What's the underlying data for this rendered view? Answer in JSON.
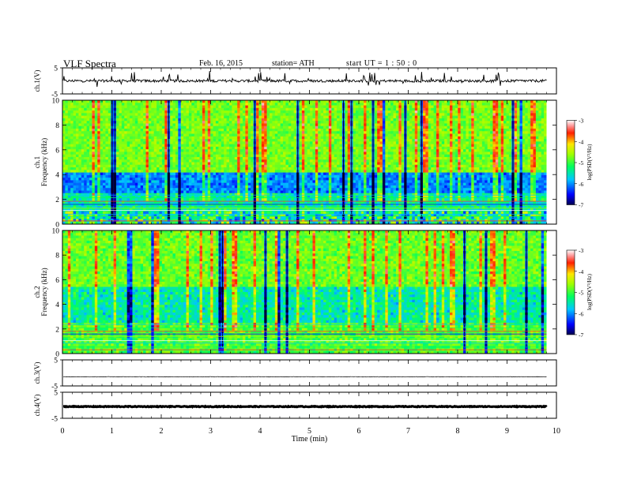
{
  "header": {
    "title": "VLF  Spectra",
    "date": "Feb. 16,  2015",
    "station": "station= ATH",
    "start_ut": "start  UT  =   1  : 50 : 0"
  },
  "chart_data": [
    {
      "type": "line",
      "panel": "ch1-waveform",
      "ylabel": "ch.1(V)",
      "ylim": [
        -5,
        5
      ],
      "yticks": [
        "5",
        "-5"
      ],
      "xlim": [
        0,
        10
      ],
      "description_values": {
        "mean": 0.0,
        "amplitude": 1.0
      }
    },
    {
      "type": "heatmap",
      "panel": "ch1-spectrogram",
      "ylabel": "ch.1\nFrequency  (kHz)",
      "ylim": [
        0,
        10
      ],
      "yticks": [
        "0",
        "2",
        "4",
        "6",
        "8",
        "10"
      ],
      "xlim": [
        0,
        9.8
      ],
      "colorbar": {
        "label": "log(PSD(V²/Hz)",
        "range": [
          -7,
          -3
        ],
        "ticks": [
          "-3",
          "-4",
          "-5",
          "-6",
          "-7"
        ]
      }
    },
    {
      "type": "heatmap",
      "panel": "ch2-spectrogram",
      "ylabel": "ch.2\nFrequency  (kHz)",
      "ylim": [
        0,
        10
      ],
      "yticks": [
        "0",
        "2",
        "4",
        "6",
        "8",
        "10"
      ],
      "xlim": [
        0,
        9.8
      ],
      "colorbar": {
        "label": "log(PSD(V²/Hz)",
        "range": [
          -7,
          -3
        ],
        "ticks": [
          "-3",
          "-4",
          "-5",
          "-6",
          "-7"
        ]
      }
    },
    {
      "type": "line",
      "panel": "ch3-waveform",
      "ylabel": "ch.3(V)",
      "ylim": [
        -5,
        5
      ],
      "yticks": [
        "5",
        "-5"
      ],
      "description_values": {
        "mean": -1.5,
        "amplitude": 0.2
      }
    },
    {
      "type": "line",
      "panel": "ch4-waveform",
      "ylabel": "ch.4(V)",
      "ylim": [
        -5,
        5
      ],
      "yticks": [
        "5",
        "-5"
      ],
      "description_values": {
        "mean": -0.5,
        "amplitude": 0.3
      }
    }
  ],
  "xaxis": {
    "label": "Time  (min)",
    "ticks": [
      "0",
      "1",
      "2",
      "3",
      "4",
      "5",
      "6",
      "7",
      "8",
      "9",
      "10"
    ]
  }
}
